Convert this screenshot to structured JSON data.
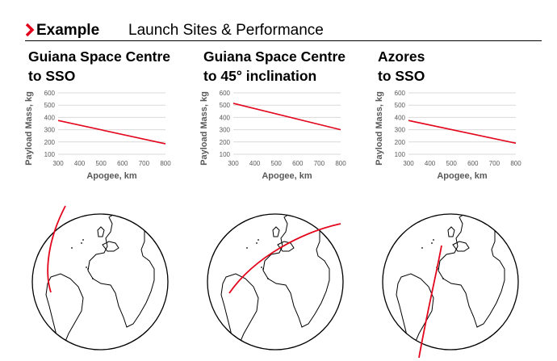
{
  "header": {
    "bold": "Example",
    "rest": "Launch Sites & Performance"
  },
  "colors": {
    "accent": "#e3051b",
    "line": "#e3051b",
    "grid": "#d9d9d9",
    "axis_text": "#595959"
  },
  "panels": [
    {
      "title_lines": [
        "Guiana Space Centre",
        "to SSO"
      ],
      "globe_icon": "earth-globe-atlantic-view"
    },
    {
      "title_lines": [
        "Guiana Space Centre",
        "to 45° inclination"
      ],
      "globe_icon": "earth-globe-atlantic-view"
    },
    {
      "title_lines": [
        "Azores",
        "to SSO"
      ],
      "globe_icon": "earth-globe-atlantic-view"
    }
  ],
  "chart_data": [
    {
      "type": "line",
      "xlabel": "Apogee, km",
      "ylabel": "Payload Mass, kg",
      "xlim": [
        300,
        800
      ],
      "ylim": [
        100,
        600
      ],
      "xticks": [
        "300",
        "400",
        "500",
        "600",
        "700",
        "800"
      ],
      "yticks": [
        "100",
        "200",
        "300",
        "400",
        "500",
        "600"
      ],
      "grid": true,
      "series": [
        {
          "x": [
            300,
            800
          ],
          "y": [
            375,
            185
          ]
        }
      ]
    },
    {
      "type": "line",
      "xlabel": "Apogee, km",
      "ylabel": "Payload Mass, kg",
      "xlim": [
        300,
        800
      ],
      "ylim": [
        100,
        600
      ],
      "xticks": [
        "300",
        "400",
        "500",
        "600",
        "700",
        "800"
      ],
      "yticks": [
        "100",
        "200",
        "300",
        "400",
        "500",
        "600"
      ],
      "grid": true,
      "series": [
        {
          "x": [
            300,
            800
          ],
          "y": [
            515,
            300
          ]
        }
      ]
    },
    {
      "type": "line",
      "xlabel": "Apogee, km",
      "ylabel": "Payload Mass, kg",
      "xlim": [
        300,
        800
      ],
      "ylim": [
        100,
        600
      ],
      "xticks": [
        "300",
        "400",
        "500",
        "600",
        "700",
        "800"
      ],
      "yticks": [
        "100",
        "200",
        "300",
        "400",
        "500",
        "600"
      ],
      "grid": true,
      "series": [
        {
          "x": [
            300,
            800
          ],
          "y": [
            375,
            190
          ]
        }
      ]
    }
  ]
}
